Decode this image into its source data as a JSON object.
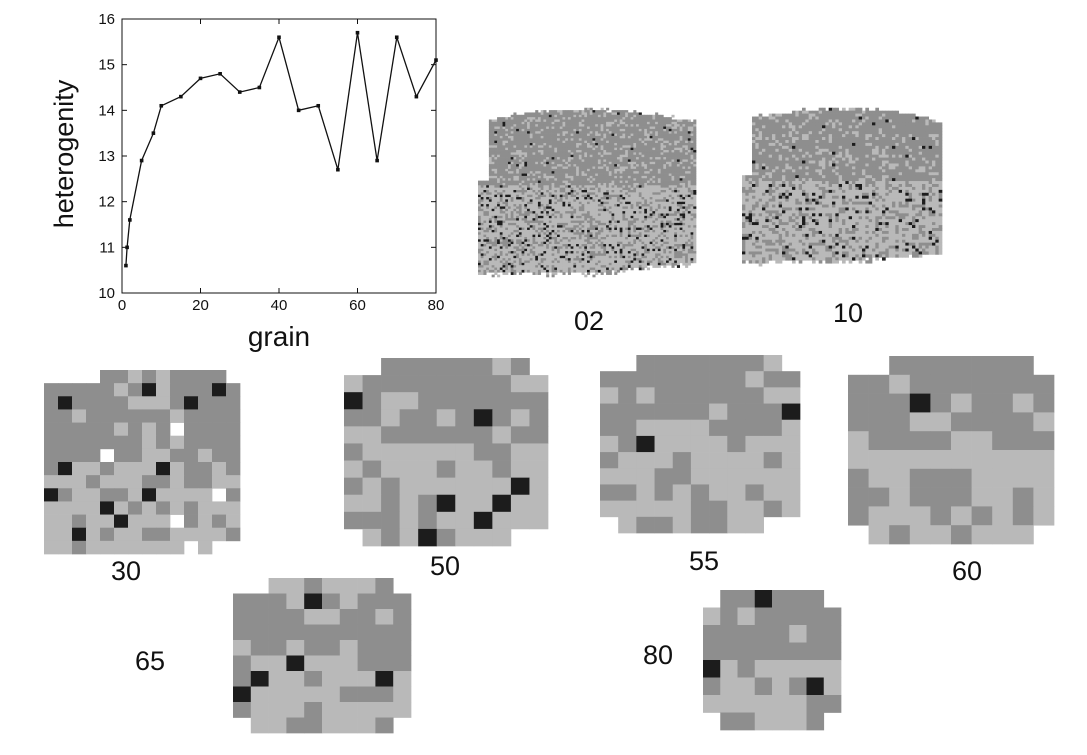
{
  "chart_data": {
    "type": "line",
    "xlabel": "grain",
    "ylabel": "heterogenity",
    "xlim": [
      0,
      80
    ],
    "ylim": [
      10,
      16
    ],
    "xticks": [
      0,
      20,
      40,
      60,
      80
    ],
    "yticks": [
      10,
      11,
      12,
      13,
      14,
      15,
      16
    ],
    "grid": false,
    "x": [
      1,
      1.3,
      2,
      5,
      8,
      10,
      15,
      20,
      25,
      30,
      35,
      40,
      45,
      50,
      55,
      60,
      65,
      70,
      75,
      80
    ],
    "y": [
      10.6,
      11.0,
      11.6,
      12.9,
      13.5,
      14.1,
      14.3,
      14.7,
      14.8,
      14.4,
      14.5,
      15.6,
      14.0,
      14.1,
      12.7,
      15.7,
      12.9,
      15.6,
      14.3,
      15.1
    ]
  },
  "panels": [
    {
      "label": "02",
      "gridsize": 80
    },
    {
      "label": "10",
      "gridsize": 60
    },
    {
      "label": "30",
      "gridsize": 14
    },
    {
      "label": "50",
      "gridsize": 11
    },
    {
      "label": "55",
      "gridsize": 11
    },
    {
      "label": "60",
      "gridsize": 10
    },
    {
      "label": "65",
      "gridsize": 10
    },
    {
      "label": "80",
      "gridsize": 8
    }
  ],
  "colors": {
    "ink": "#111111",
    "dark": "#1c1c1c",
    "mid": "#8e8e8e",
    "light": "#b9b9b9"
  }
}
